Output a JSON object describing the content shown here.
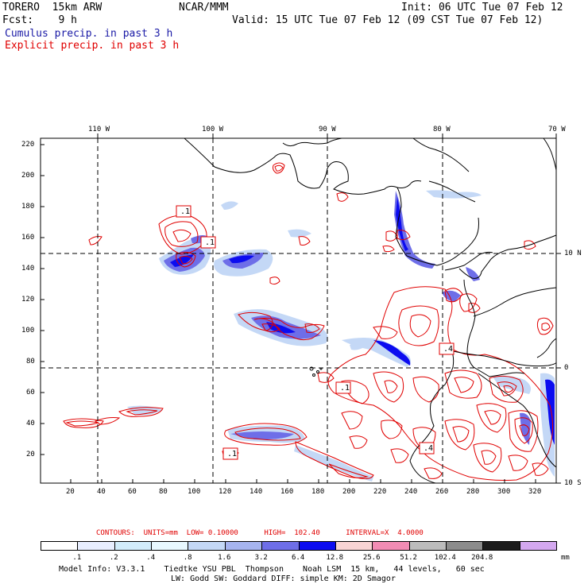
{
  "header": {
    "model": "TORERO  15km ARW",
    "org": "NCAR/MMM",
    "init": "Init: 06 UTC Tue 07 Feb 12",
    "fcst": "Fcst:    9 h",
    "valid": "Valid: 15 UTC Tue 07 Feb 12 (09 CST Tue 07 Feb 12)",
    "cumulus": "Cumulus precip. in past 3 h",
    "explicit": "Explicit precip. in past 3 h"
  },
  "axes": {
    "top_lon": [
      "110 W",
      "100 W",
      "90 W",
      "80 W",
      "70 W"
    ],
    "right_lat": [
      "10 N",
      "0",
      "10 S"
    ],
    "left_ticks": [
      "220",
      "200",
      "180",
      "160",
      "140",
      "120",
      "100",
      "80",
      "60",
      "40",
      "20"
    ],
    "bottom_ticks": [
      "20",
      "40",
      "60",
      "80",
      "100",
      "120",
      "140",
      "160",
      "180",
      "200",
      "220",
      "240",
      "260",
      "280",
      "300",
      "320"
    ]
  },
  "map_labels": [
    ".1",
    ".1",
    ".1",
    ".1",
    ".4",
    ".4"
  ],
  "contours": {
    "text": "CONTOURS:  UNITS=mm  LOW= 0.10000      HIGH=  102.40      INTERVAL=X  4.0000"
  },
  "legend": {
    "colors": [
      "#ffffff",
      "#e8eeff",
      "#d2ecfb",
      "#e8f8ff",
      "#c4d8f6",
      "#a6b4ef",
      "#6e6ee8",
      "#0c0cf0",
      "#f8d4d4",
      "#f28cb4",
      "#bcbcbc",
      "#8c8c8c",
      "#1c1c1c",
      "#d4a8f0"
    ],
    "labels": [
      ".1",
      ".2",
      ".4",
      ".8",
      "1.6",
      "3.2",
      "6.4",
      "12.8",
      "25.6",
      "51.2",
      "102.4",
      "204.8"
    ],
    "unit": "mm"
  },
  "model_info": {
    "line1": "Model Info: V3.3.1    Tiedtke YSU PBL  Thompson    Noah LSM  15 km,   44 levels,   60 sec",
    "line2": "LW: Godd SW: Goddard DIFF: simple KM: 2D Smagor"
  },
  "colors": {
    "contour": "#e00000",
    "coast": "#000000",
    "cumulus_text": "#1a1aa6"
  }
}
